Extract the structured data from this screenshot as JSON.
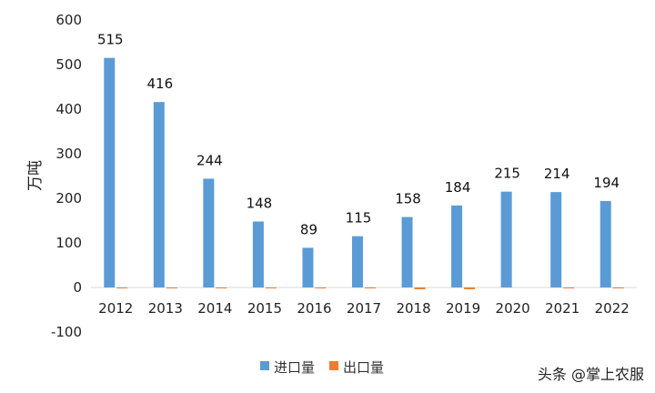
{
  "chart_data": {
    "type": "bar",
    "ylabel": "万吨",
    "xlabel": "",
    "ylim": [
      -100,
      600
    ],
    "yticks": [
      -100,
      0,
      100,
      200,
      300,
      400,
      500,
      600
    ],
    "grid": false,
    "legend_position": "bottom",
    "categories": [
      "2012",
      "2013",
      "2014",
      "2015",
      "2016",
      "2017",
      "2018",
      "2019",
      "2020",
      "2021",
      "2022"
    ],
    "series": [
      {
        "name": "进口量",
        "color": "#5B9BD5",
        "values": [
          515,
          416,
          244,
          148,
          89,
          115,
          158,
          184,
          215,
          214,
          194
        ],
        "labels": [
          "515",
          "416",
          "244",
          "148",
          "89",
          "115",
          "158",
          "184",
          "215",
          "214",
          "194"
        ]
      },
      {
        "name": "出口量",
        "color": "#ED7D31",
        "values": [
          -2,
          -2,
          -2,
          -2,
          -2,
          -2,
          -4,
          -4,
          0,
          -2,
          -2
        ]
      }
    ]
  },
  "watermark": "头条 @掌上农服"
}
